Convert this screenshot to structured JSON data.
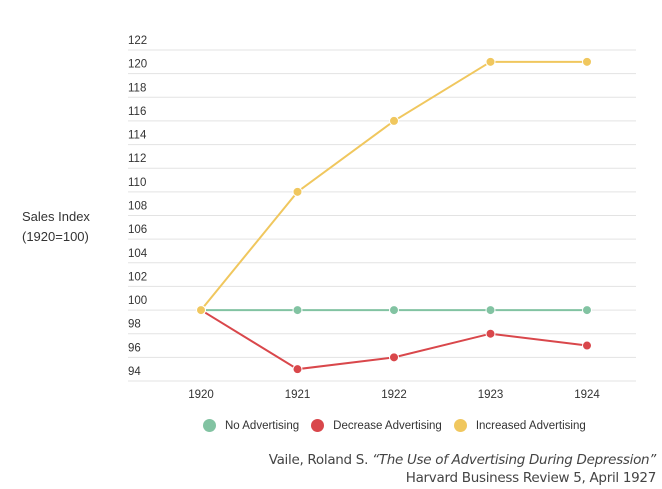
{
  "chart_data": {
    "type": "line",
    "title": "",
    "xlabel": "",
    "ylabel_line1": "Sales Index",
    "ylabel_line2": "(1920=100)",
    "x": [
      "1920",
      "1921",
      "1922",
      "1923",
      "1924"
    ],
    "yticks": [
      94,
      96,
      98,
      100,
      102,
      104,
      106,
      108,
      110,
      112,
      114,
      116,
      118,
      120,
      122
    ],
    "ylim": [
      94,
      122
    ],
    "grid": true,
    "legend_position": "bottom",
    "series": [
      {
        "name": "No Advertising",
        "color": "#82c3a2",
        "values": [
          100,
          100,
          100,
          100,
          100
        ]
      },
      {
        "name": "Decrease Advertising",
        "color": "#d9474b",
        "values": [
          100,
          95,
          96,
          98,
          97
        ]
      },
      {
        "name": "Increased Advertising",
        "color": "#f0c75e",
        "values": [
          100,
          110,
          116,
          121,
          121
        ]
      }
    ]
  },
  "citation": {
    "author": "Vaile, Roland S. ",
    "title": "“The Use of Advertising During Depression”",
    "source": "Harvard Business Review 5, April 1927"
  }
}
